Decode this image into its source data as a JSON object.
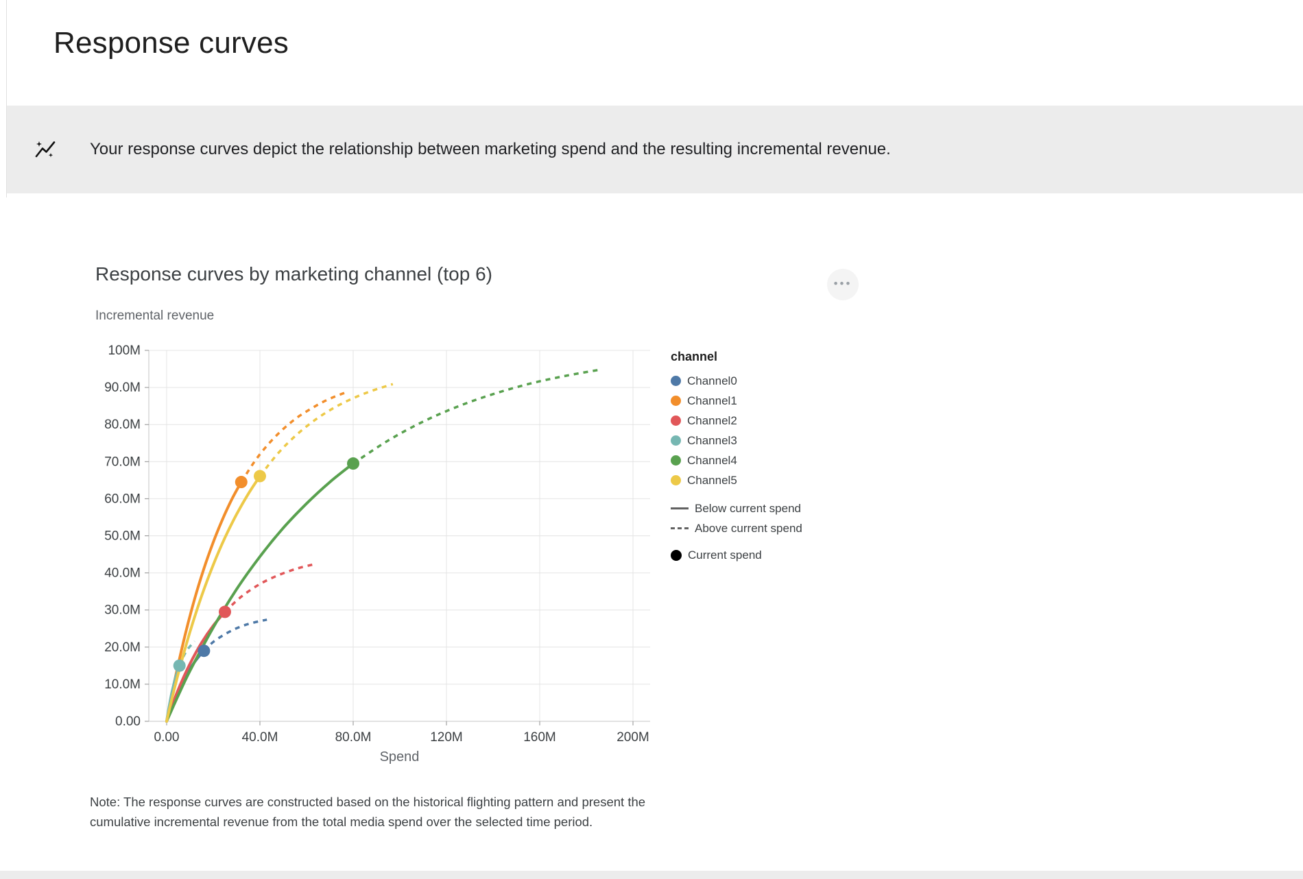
{
  "page": {
    "title": "Response curves"
  },
  "banner": {
    "icon": "insights-icon",
    "text": "Your response curves depict the relationship between marketing spend and the resulting incremental revenue."
  },
  "menu": {
    "icon": "more-options-icon",
    "dots": "•••"
  },
  "note": {
    "text": "Note: The response curves are constructed based on the historical flighting pattern and present the cumulative incremental revenue from the total media spend over the selected time period."
  },
  "chart_data": {
    "type": "line",
    "title": "Response curves by marketing channel (top 6)",
    "ylabel": "Incremental revenue",
    "xlabel": "Spend",
    "xlim": [
      0,
      207
    ],
    "ylim": [
      0,
      100
    ],
    "grid": true,
    "x_ticks": [
      {
        "v": 0,
        "label": "0.00"
      },
      {
        "v": 40,
        "label": "40.0M"
      },
      {
        "v": 80,
        "label": "80.0M"
      },
      {
        "v": 120,
        "label": "120M"
      },
      {
        "v": 160,
        "label": "160M"
      },
      {
        "v": 200,
        "label": "200M"
      }
    ],
    "y_ticks": [
      {
        "v": 0,
        "label": "0.00"
      },
      {
        "v": 10,
        "label": "10.0M"
      },
      {
        "v": 20,
        "label": "20.0M"
      },
      {
        "v": 30,
        "label": "30.0M"
      },
      {
        "v": 40,
        "label": "40.0M"
      },
      {
        "v": 50,
        "label": "50.0M"
      },
      {
        "v": 60,
        "label": "60.0M"
      },
      {
        "v": 70,
        "label": "70.0M"
      },
      {
        "v": 80,
        "label": "80.0M"
      },
      {
        "v": 90,
        "label": "90.0M"
      },
      {
        "v": 100,
        "label": "100M"
      }
    ],
    "legend": {
      "title": "channel",
      "position": "right",
      "line_styles": [
        {
          "label": "Below current spend",
          "style": "solid"
        },
        {
          "label": "Above current spend",
          "style": "dashed"
        }
      ],
      "point_label": "Current spend"
    },
    "series": [
      {
        "name": "Channel0",
        "color": "#4e79a7",
        "current_spend": [
          16,
          19.0
        ],
        "solid": [
          [
            0,
            0
          ],
          [
            1,
            1.9
          ],
          [
            2,
            3.6
          ],
          [
            4,
            6.8
          ],
          [
            6,
            9.6
          ],
          [
            8,
            12.0
          ],
          [
            10,
            14.1
          ],
          [
            12,
            16.0
          ],
          [
            14,
            17.6
          ],
          [
            16,
            19.0
          ]
        ],
        "dashed": [
          [
            16,
            19.0
          ],
          [
            20,
            21.4
          ],
          [
            24,
            23.1
          ],
          [
            28,
            24.5
          ],
          [
            32,
            25.6
          ],
          [
            36,
            26.4
          ],
          [
            40,
            27.0
          ],
          [
            43,
            27.4
          ]
        ]
      },
      {
        "name": "Channel1",
        "color": "#f28e2b",
        "current_spend": [
          32,
          64.5
        ],
        "solid": [
          [
            0,
            0
          ],
          [
            2,
            6.5
          ],
          [
            4,
            12.6
          ],
          [
            8,
            23.5
          ],
          [
            12,
            33.0
          ],
          [
            16,
            41.2
          ],
          [
            20,
            48.3
          ],
          [
            24,
            54.5
          ],
          [
            28,
            59.9
          ],
          [
            32,
            64.5
          ]
        ],
        "dashed": [
          [
            32,
            64.5
          ],
          [
            38,
            70.3
          ],
          [
            44,
            75.0
          ],
          [
            50,
            78.8
          ],
          [
            56,
            81.9
          ],
          [
            62,
            84.3
          ],
          [
            68,
            86.4
          ],
          [
            74,
            88.0
          ],
          [
            78,
            88.9
          ]
        ]
      },
      {
        "name": "Channel2",
        "color": "#e15759",
        "current_spend": [
          25,
          29.5
        ],
        "solid": [
          [
            0,
            0
          ],
          [
            2,
            3.6
          ],
          [
            5,
            8.6
          ],
          [
            10,
            15.5
          ],
          [
            15,
            21.2
          ],
          [
            20,
            25.8
          ],
          [
            25,
            29.5
          ]
        ],
        "dashed": [
          [
            25,
            29.5
          ],
          [
            32,
            33.6
          ],
          [
            40,
            37.0
          ],
          [
            48,
            39.4
          ],
          [
            56,
            41.2
          ],
          [
            63,
            42.3
          ]
        ]
      },
      {
        "name": "Channel3",
        "color": "#76b7b2",
        "current_spend": [
          5.5,
          15.0
        ],
        "solid": [
          [
            0,
            0
          ],
          [
            0.5,
            2.0
          ],
          [
            1,
            3.8
          ],
          [
            2,
            7.1
          ],
          [
            3,
            9.8
          ],
          [
            4,
            12.2
          ],
          [
            5.5,
            15.0
          ]
        ],
        "dashed": [
          [
            5.5,
            15.0
          ],
          [
            7,
            17.2
          ],
          [
            9,
            19.4
          ],
          [
            12,
            21.6
          ]
        ]
      },
      {
        "name": "Channel4",
        "color": "#59a14f",
        "current_spend": [
          80,
          69.5
        ],
        "solid": [
          [
            0,
            0
          ],
          [
            5,
            7.0
          ],
          [
            10,
            13.6
          ],
          [
            20,
            25.3
          ],
          [
            30,
            35.6
          ],
          [
            40,
            44.4
          ],
          [
            50,
            52.1
          ],
          [
            60,
            58.7
          ],
          [
            70,
            64.5
          ],
          [
            80,
            69.5
          ]
        ],
        "dashed": [
          [
            80,
            69.5
          ],
          [
            95,
            75.7
          ],
          [
            110,
            80.8
          ],
          [
            125,
            84.9
          ],
          [
            140,
            88.2
          ],
          [
            155,
            90.9
          ],
          [
            170,
            93.0
          ],
          [
            185,
            94.7
          ]
        ]
      },
      {
        "name": "Channel5",
        "color": "#edc948",
        "current_spend": [
          40,
          66.1
        ],
        "solid": [
          [
            0,
            0
          ],
          [
            2,
            5.4
          ],
          [
            5,
            12.9
          ],
          [
            10,
            24.1
          ],
          [
            15,
            33.8
          ],
          [
            20,
            42.2
          ],
          [
            25,
            49.5
          ],
          [
            30,
            55.8
          ],
          [
            35,
            61.3
          ],
          [
            40,
            66.1
          ]
        ],
        "dashed": [
          [
            40,
            66.1
          ],
          [
            48,
            72.4
          ],
          [
            56,
            77.4
          ],
          [
            64,
            81.4
          ],
          [
            72,
            84.6
          ],
          [
            80,
            87.1
          ],
          [
            88,
            89.1
          ],
          [
            97,
            90.9
          ]
        ]
      }
    ]
  }
}
